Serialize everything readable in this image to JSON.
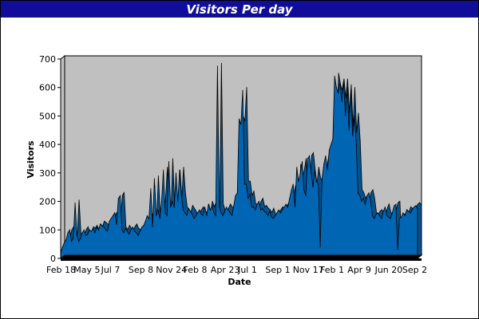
{
  "colors": {
    "title_bg": "#0f0d9a",
    "title_text": "#ffffff",
    "plot_bg": "#c0c0c0",
    "area_fill": "#0066b3",
    "area_line": "#000000",
    "floor": "#000000"
  },
  "chart_data": {
    "type": "area",
    "title": "Visitors Per day",
    "xlabel": "Date",
    "ylabel": "Visitors",
    "ylim": [
      0,
      700
    ],
    "yticks": [
      0,
      100,
      200,
      300,
      400,
      500,
      600,
      700
    ],
    "grid": false,
    "legend": "none",
    "style": "3d",
    "x_tick_labels": [
      "Feb 18",
      "May 5",
      "Jul 7",
      "Sep 8",
      "Nov 24",
      "Feb 8",
      "Apr 23",
      "Jul 1",
      "Sep 1",
      "Nov 17",
      "Feb 1",
      "Apr 9",
      "Jun 20",
      "Sep 2"
    ],
    "series": [
      {
        "values": [
          20,
          40,
          55,
          65,
          90,
          100,
          60,
          70,
          195,
          80,
          60,
          70,
          90,
          100,
          80,
          85,
          100,
          95,
          105,
          90,
          110,
          100,
          120,
          115,
          110,
          100,
          95,
          130,
          140,
          150,
          160,
          120,
          210,
          220,
          100,
          90,
          105,
          95,
          85,
          100,
          110,
          95,
          90,
          80,
          95,
          110,
          115,
          130,
          150,
          140,
          245,
          110,
          280,
          150,
          170,
          140,
          200,
          310,
          160,
          150,
          340,
          180,
          200,
          180,
          300,
          200,
          310,
          220,
          170,
          160,
          150,
          175,
          165,
          155,
          140,
          150,
          160,
          170,
          155,
          150,
          180,
          150,
          190,
          170,
          185,
          160,
          150,
          675,
          180,
          160,
          150,
          165,
          180,
          170,
          160,
          150,
          185,
          220,
          230,
          490,
          470,
          590,
          260,
          260,
          210,
          225,
          180,
          180,
          170,
          190,
          200,
          170,
          175,
          165,
          160,
          150,
          165,
          145,
          140,
          150,
          160,
          170,
          160,
          170,
          180,
          190,
          180,
          210,
          240,
          260,
          180,
          320,
          270,
          300,
          340,
          240,
          220,
          350,
          360,
          300,
          250,
          310,
          270,
          260,
          40,
          280,
          330,
          360,
          310,
          380,
          400,
          420,
          640,
          600,
          580,
          620,
          550,
          620,
          500,
          600,
          450,
          590,
          430,
          500,
          400,
          230,
          220,
          200,
          210,
          190,
          220,
          230,
          200,
          150,
          140,
          155,
          160,
          150,
          140,
          165,
          180,
          150,
          145,
          140,
          160,
          185,
          190,
          30,
          140,
          145,
          160,
          150,
          170,
          165,
          160,
          170,
          180,
          185,
          175
        ]
      }
    ]
  }
}
